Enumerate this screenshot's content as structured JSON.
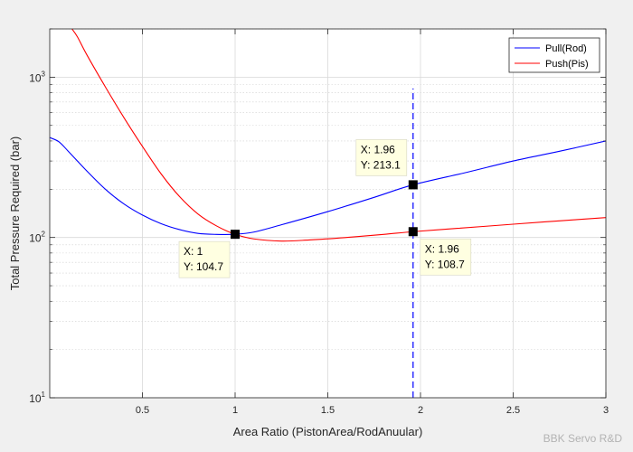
{
  "chart_data": {
    "type": "line",
    "xlabel": "Area Ratio (PistonArea/RodAnuular)",
    "ylabel": "Total Pressure Required (bar)",
    "xlim": [
      0,
      3
    ],
    "ylim": [
      10,
      2000
    ],
    "yscale": "log",
    "grid": true,
    "x_ticks": [
      0.5,
      1,
      1.5,
      2,
      2.5,
      3
    ],
    "x_tick_labels": [
      "0.5",
      "1",
      "1.5",
      "2",
      "2.5",
      "3"
    ],
    "y_major_ticks": [
      10,
      100,
      1000
    ],
    "y_tick_labels": [
      {
        "base": "10",
        "exp": "1"
      },
      {
        "base": "10",
        "exp": "2"
      },
      {
        "base": "10",
        "exp": "3"
      }
    ],
    "legend_position": "top-right",
    "series": [
      {
        "name": "Pull(Rod)",
        "color": "#0000ff",
        "x": [
          0,
          0.05,
          0.1,
          0.2,
          0.3,
          0.4,
          0.5,
          0.6,
          0.7,
          0.8,
          0.9,
          1.0,
          1.1,
          1.25,
          1.5,
          1.75,
          1.96,
          2.25,
          2.5,
          2.75,
          3.0
        ],
        "y": [
          420,
          395,
          345,
          260,
          200,
          162,
          138,
          122,
          112,
          106,
          104.5,
          104.7,
          108,
          120,
          145,
          178,
          213.1,
          255,
          300,
          345,
          400
        ]
      },
      {
        "name": "Push(Pis)",
        "color": "#ff0000",
        "x": [
          0.12,
          0.15,
          0.2,
          0.3,
          0.4,
          0.5,
          0.6,
          0.7,
          0.8,
          0.9,
          1.0,
          1.1,
          1.25,
          1.4,
          1.6,
          1.8,
          1.96,
          2.2,
          2.5,
          2.75,
          3.0
        ],
        "y": [
          2000,
          1780,
          1380,
          870,
          560,
          370,
          250,
          180,
          140,
          118,
          104.7,
          98,
          95,
          96.5,
          100,
          104.5,
          108.7,
          114,
          121,
          127,
          133
        ]
      }
    ],
    "vertical_marker": {
      "x": 1.96,
      "y_from": 10,
      "y_to": 850,
      "color": "#0000ff"
    },
    "data_tips": [
      {
        "x_label": "X: 1",
        "y_label": "Y: 104.7",
        "x": 1.0,
        "y": 104.7
      },
      {
        "x_label": "X: 1.96",
        "y_label": "Y: 213.1",
        "x": 1.96,
        "y": 213.1
      },
      {
        "x_label": "X: 1.96",
        "y_label": "Y: 108.7",
        "x": 1.96,
        "y": 108.7
      }
    ]
  },
  "watermark": "BBK Servo R&D"
}
